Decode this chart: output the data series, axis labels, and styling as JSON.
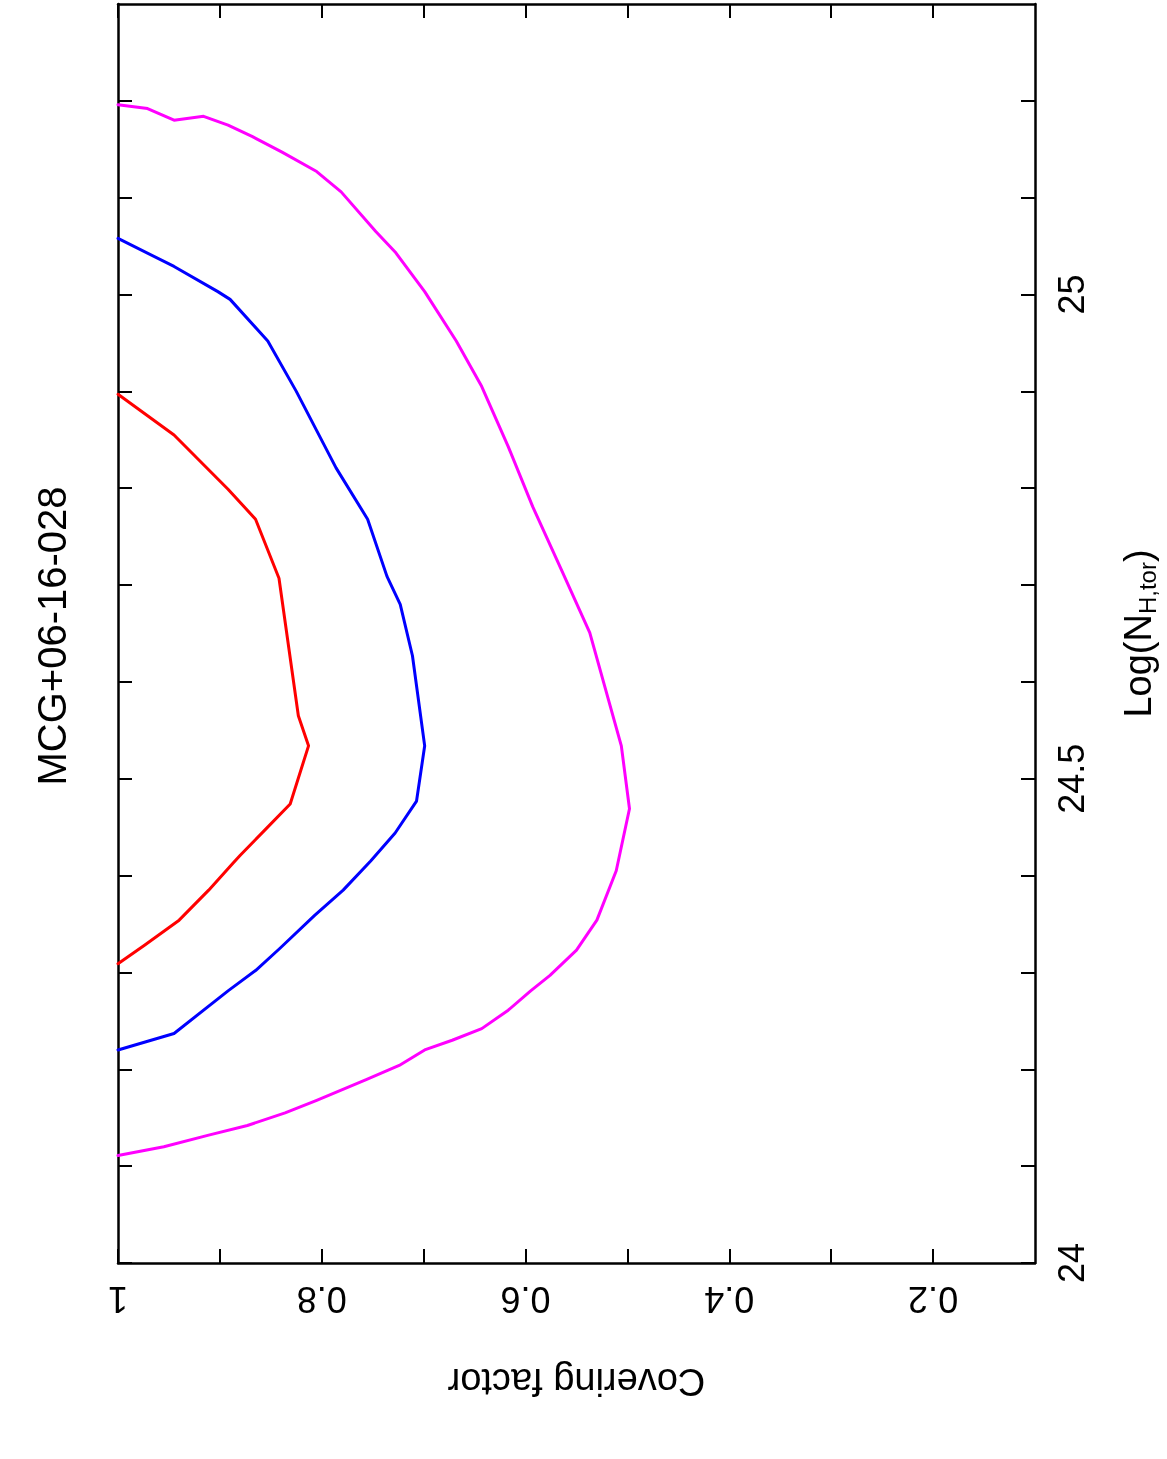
{
  "chart_data": {
    "type": "line",
    "title": "MCG+06-16-028",
    "xlabel": "Covering factor",
    "ylabel": "Log(N$_{H,tor}$)",
    "xlim": [
      1,
      0.1
    ],
    "xticks": [
      1,
      {
        "value": 0.9,
        "label": null
      },
      0.8,
      {
        "value": 0.7,
        "label": null
      },
      0.6,
      {
        "value": 0.5,
        "label": null
      },
      0.4,
      {
        "value": 0.3,
        "label": null
      },
      0.2
    ],
    "ylim": [
      24,
      25.3
    ],
    "yticks": [
      24,
      {
        "value": 24.1,
        "label": null
      },
      {
        "value": 24.2,
        "label": null
      },
      {
        "value": 24.3,
        "label": null
      },
      {
        "value": 24.4,
        "label": null
      },
      24.5,
      {
        "value": 24.6,
        "label": null
      },
      {
        "value": 24.7,
        "label": null
      },
      {
        "value": 24.8,
        "label": null
      },
      {
        "value": 24.9,
        "label": null
      },
      25,
      {
        "value": 25.1,
        "label": null
      },
      {
        "value": 25.2,
        "label": null
      }
    ],
    "grid": false,
    "marker": "none",
    "line_style": "solid",
    "series": [
      {
        "color": "#ff0000",
        "values": [
          24.309,
          24.328,
          24.354,
          24.385,
          24.413,
          24.421,
          24.448,
          24.474,
          24.534,
          24.565,
          24.707,
          24.768,
          24.799,
          24.855,
          24.897
        ],
        "x": [
          1.0,
          0.974,
          0.94,
          0.911,
          0.887,
          0.88,
          0.855,
          0.831,
          0.813,
          0.823,
          0.842,
          0.865,
          0.892,
          0.945,
          1.0
        ]
      },
      {
        "color": "#0000ff",
        "values": [
          24.22,
          24.237,
          24.281,
          24.302,
          24.325,
          24.359,
          24.385,
          24.415,
          24.444,
          24.477,
          24.534,
          24.627,
          24.68,
          24.709,
          24.768,
          24.821,
          24.9,
          24.952,
          24.995,
          25.003,
          25.029,
          25.058
        ],
        "x": [
          1.0,
          0.945,
          0.892,
          0.865,
          0.841,
          0.807,
          0.779,
          0.752,
          0.728,
          0.707,
          0.699,
          0.711,
          0.723,
          0.736,
          0.755,
          0.786,
          0.825,
          0.853,
          0.89,
          0.902,
          0.945,
          1.0
        ]
      },
      {
        "color": "#ff00ff",
        "values": [
          24.111,
          24.12,
          24.132,
          24.142,
          24.155,
          24.168,
          24.189,
          24.204,
          24.22,
          24.23,
          24.242,
          24.261,
          24.281,
          24.297,
          24.323,
          24.354,
          24.405,
          24.469,
          24.534,
          24.651,
          24.714,
          24.781,
          24.843,
          24.905,
          24.952,
          25.003,
          25.044,
          25.065,
          25.106,
          25.127,
          25.147,
          25.163,
          25.175,
          25.184,
          25.18,
          25.192,
          25.196
        ],
        "x": [
          1.0,
          0.955,
          0.911,
          0.873,
          0.836,
          0.805,
          0.757,
          0.724,
          0.699,
          0.672,
          0.643,
          0.617,
          0.595,
          0.576,
          0.55,
          0.53,
          0.511,
          0.498,
          0.506,
          0.537,
          0.564,
          0.593,
          0.617,
          0.643,
          0.668,
          0.699,
          0.728,
          0.747,
          0.781,
          0.805,
          0.839,
          0.868,
          0.892,
          0.916,
          0.945,
          0.971,
          1.0
        ]
      }
    ]
  }
}
